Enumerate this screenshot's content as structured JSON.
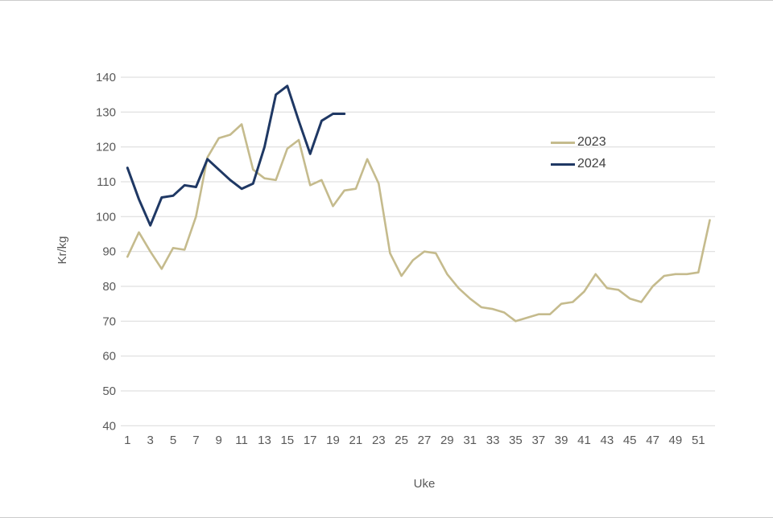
{
  "chart_data": {
    "type": "line",
    "title": "",
    "xlabel": "Uke",
    "ylabel": "Kr/kg",
    "ylim": [
      40,
      140
    ],
    "xlim": [
      1,
      52
    ],
    "grid": true,
    "legend_position": "right",
    "yticks": [
      140,
      130,
      120,
      110,
      100,
      90,
      80,
      70,
      60,
      50,
      40
    ],
    "xticks": [
      1,
      3,
      5,
      7,
      9,
      11,
      13,
      15,
      17,
      19,
      21,
      23,
      25,
      27,
      29,
      31,
      33,
      35,
      37,
      39,
      41,
      43,
      45,
      47,
      49,
      51
    ],
    "x_unit": "week",
    "series": [
      {
        "name": "2023",
        "color": "#C5BB8D",
        "x_start": 1,
        "values": [
          88.5,
          95.5,
          90,
          85,
          91,
          90.5,
          100,
          117,
          122.5,
          123.5,
          126.5,
          113.5,
          111,
          110.5,
          119.5,
          122,
          109,
          110.5,
          103,
          107.5,
          108,
          116.5,
          109.5,
          89.5,
          83,
          87.5,
          90,
          89.5,
          83.5,
          79.5,
          76.5,
          74,
          73.5,
          72.5,
          70,
          71,
          72,
          72,
          75,
          75.5,
          78.5,
          83.5,
          79.5,
          79,
          76.5,
          75.5,
          80,
          83,
          83.5,
          83.5,
          84,
          99
        ]
      },
      {
        "name": "2024",
        "color": "#1F3864",
        "x_start": 1,
        "values": [
          114,
          105,
          97.5,
          105.5,
          106,
          109,
          108.5,
          116.5,
          113.5,
          110.5,
          108,
          109.5,
          120,
          135,
          137.5,
          127.5,
          118,
          127.5,
          129.5,
          129.5
        ]
      }
    ]
  },
  "colors": {
    "gridline": "#D9D9D9",
    "tick_label": "#595959",
    "legend_text": "#404040",
    "background": "#FFFFFF"
  }
}
